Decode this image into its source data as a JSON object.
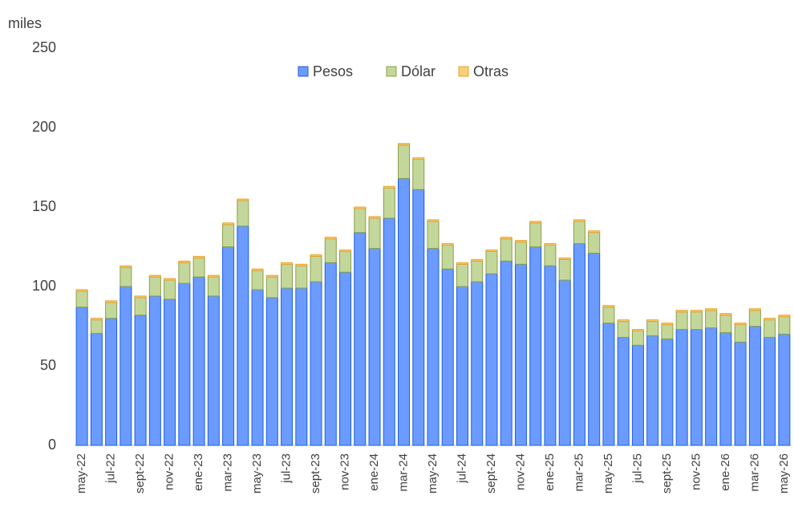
{
  "chart_data": {
    "type": "stacked_bar",
    "y_label": "miles",
    "categories": [
      "may-22",
      null,
      "jul-22",
      null,
      "sept-22",
      null,
      "nov-22",
      null,
      "ene-23",
      null,
      "mar-23",
      null,
      "may-23",
      null,
      "jul-23",
      null,
      "sept-23",
      null,
      "nov-23",
      null,
      "ene-24",
      null,
      "mar-24",
      null,
      "may-24",
      null,
      "jul-24",
      null,
      "sept-24",
      null,
      "nov-24",
      null,
      "ene-25",
      null,
      "mar-25",
      null,
      "may-25",
      null,
      "jul-25",
      null,
      "sept-25",
      null,
      "nov-25",
      null,
      "ene-26",
      null,
      "mar-26",
      null,
      "may-26"
    ],
    "series": [
      {
        "name": "Pesos",
        "color": "#6b9bff",
        "edge": "#1f5fe0",
        "values": [
          87,
          70.5,
          80,
          100,
          82,
          94,
          92,
          102,
          106,
          94,
          125,
          138,
          98,
          93,
          99,
          99,
          103,
          115,
          109,
          134,
          124,
          143,
          168,
          161,
          124,
          111,
          100,
          103,
          108,
          116,
          114,
          125,
          113,
          104,
          127,
          121,
          77,
          68,
          63,
          69,
          67,
          73,
          73,
          74,
          71,
          65,
          75,
          68,
          70
        ]
      },
      {
        "name": "Dólar",
        "color": "#c4d79b",
        "edge": "#8aa04b",
        "values": [
          10,
          8.5,
          10,
          12,
          11,
          12,
          12,
          13,
          12,
          12,
          14,
          16,
          12,
          13,
          15,
          14,
          16,
          15,
          13,
          15,
          19,
          19,
          21,
          19,
          17,
          15,
          14,
          13,
          14,
          14,
          14,
          15,
          13,
          13,
          14,
          13,
          10,
          10,
          9,
          9,
          9,
          11,
          11,
          11,
          11,
          11,
          10,
          11,
          11
        ]
      },
      {
        "name": "Otras",
        "color": "#f7cf7a",
        "edge": "#e8a32c",
        "values": [
          1,
          1,
          1,
          1,
          1,
          1,
          1,
          1,
          1,
          1,
          1,
          1,
          1,
          1,
          1,
          1,
          1,
          1,
          1,
          1,
          1,
          1,
          1,
          1,
          1,
          1,
          1,
          1,
          1,
          1,
          1,
          1,
          1,
          1,
          1,
          1,
          1,
          1,
          1,
          1,
          1,
          1,
          1,
          1,
          1,
          1,
          1,
          1,
          1
        ]
      }
    ],
    "ylim": [
      0,
      250
    ],
    "yticks": [
      0,
      50,
      100,
      150,
      200,
      250
    ],
    "grid": false,
    "legend": "top"
  }
}
